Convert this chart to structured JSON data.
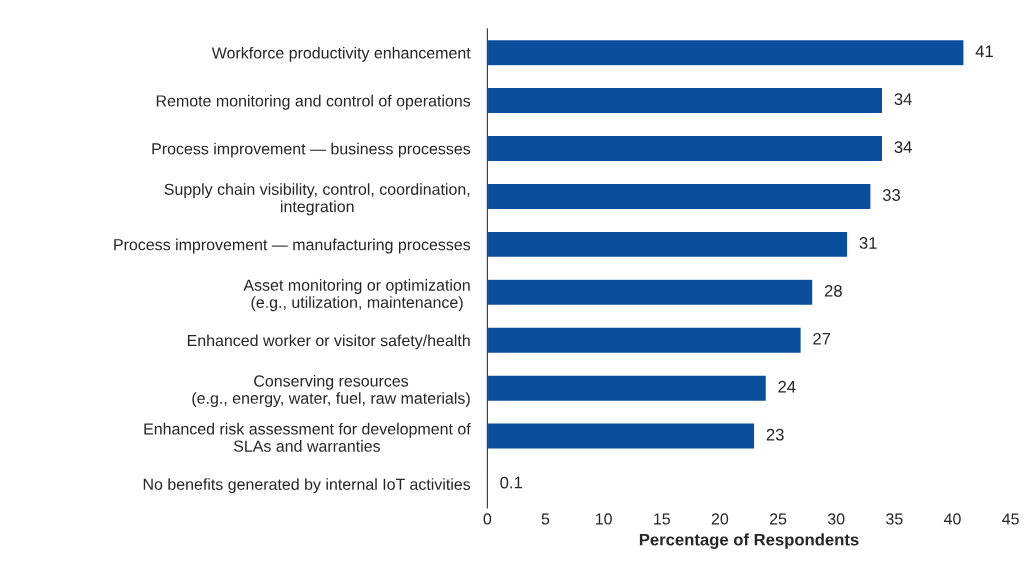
{
  "chart_data": {
    "type": "bar",
    "orientation": "horizontal",
    "xlabel": "Percentage of Respondents",
    "categories": [
      "Workforce productivity enhancement",
      "Remote monitoring and control of operations",
      "Process improvement — business processes",
      "Supply chain visibility, control, coordination,\nintegration",
      "Process improvement — manufacturing processes",
      "Asset monitoring or optimization\n(e.g., utilization, maintenance)",
      "Enhanced worker or visitor safety/health",
      "Conserving resources\n(e.g., energy, water, fuel, raw materials)",
      "Enhanced risk assessment for development of\nSLAs and warranties",
      "No benefits generated by internal IoT activities"
    ],
    "values": [
      41,
      34,
      34,
      33,
      31,
      28,
      27,
      24,
      23,
      0.1
    ],
    "color": "#0b4f9c",
    "data_labels": true,
    "xlim": [
      0,
      45
    ],
    "xticks": [
      0,
      5,
      10,
      15,
      20,
      25,
      30,
      35,
      40,
      45
    ],
    "grid": false
  }
}
